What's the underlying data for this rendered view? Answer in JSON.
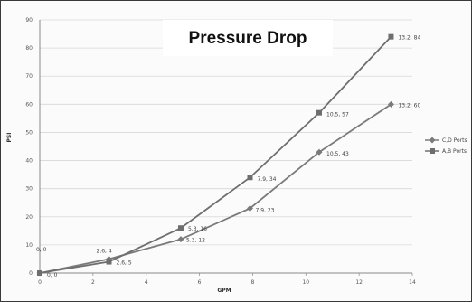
{
  "chart_data": {
    "type": "line",
    "title": "Pressure Drop",
    "xlabel": "GPM",
    "ylabel": "PSI",
    "xlim": [
      0,
      14
    ],
    "ylim": [
      0,
      90
    ],
    "x_ticks": [
      0,
      2,
      4,
      6,
      8,
      10,
      12,
      14
    ],
    "y_ticks": [
      0,
      10,
      20,
      30,
      40,
      50,
      60,
      70,
      80,
      90
    ],
    "grid": true,
    "legend_position": "right",
    "series": [
      {
        "name": "C,D Ports",
        "marker": "diamond",
        "color": "#7a7a7a",
        "points": [
          {
            "x": 0,
            "y": 0,
            "label": "0, 0"
          },
          {
            "x": 2.6,
            "y": 5,
            "label": "2.6, 5"
          },
          {
            "x": 5.3,
            "y": 12,
            "label": "5.3, 12"
          },
          {
            "x": 7.9,
            "y": 23,
            "label": "7.9, 23"
          },
          {
            "x": 10.5,
            "y": 43,
            "label": "10.5, 43"
          },
          {
            "x": 13.2,
            "y": 60,
            "label": "13.2, 60"
          }
        ]
      },
      {
        "name": "A,B Ports",
        "marker": "square",
        "color": "#6e6e6e",
        "points": [
          {
            "x": 0,
            "y": 0,
            "label": "0, 0"
          },
          {
            "x": 2.6,
            "y": 4,
            "label": "2.6, 4"
          },
          {
            "x": 5.3,
            "y": 16,
            "label": "5.3, 16"
          },
          {
            "x": 7.9,
            "y": 34,
            "label": "7.9, 34"
          },
          {
            "x": 10.5,
            "y": 57,
            "label": "10.5, 57"
          },
          {
            "x": 13.2,
            "y": 84,
            "label": "13.2, 84"
          }
        ]
      }
    ]
  }
}
